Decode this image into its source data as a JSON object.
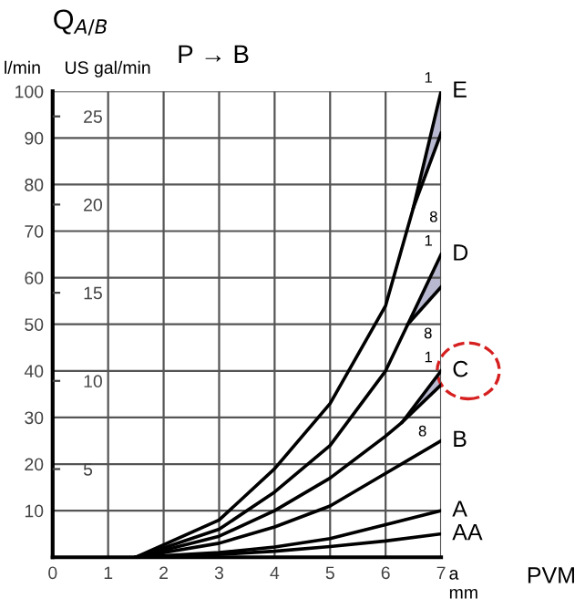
{
  "chart_data": {
    "type": "line",
    "xlabel": "a\nmm",
    "ylabel": "l/min",
    "y2label": "US gal/min",
    "xlim": [
      0,
      7
    ],
    "xticks": [
      0,
      1,
      2,
      3,
      4,
      5,
      6,
      7
    ],
    "ylim": [
      0,
      100
    ],
    "yticks": [
      10,
      20,
      30,
      40,
      50,
      60,
      70,
      80,
      90,
      100
    ],
    "y2lim": [
      0,
      26.42
    ],
    "y2ticks": [
      5,
      10,
      15,
      20,
      25
    ],
    "grid": true,
    "marker": "none",
    "line_style": "solid",
    "annotations": [
      "Q$_{A/B}$",
      "P → B",
      "PVM",
      {
        "text": "1",
        "x": 7,
        "y": 100
      },
      {
        "text": "8",
        "x": 6.5,
        "y": 75
      },
      {
        "text": "1",
        "x": 7,
        "y": 65
      },
      {
        "text": "8",
        "x": 6.4,
        "y": 50
      },
      {
        "text": "1",
        "x": 7,
        "y": 40
      },
      {
        "text": "8",
        "x": 6.3,
        "y": 29
      }
    ],
    "series": [
      {
        "name": "E",
        "color": "#000000",
        "x": [
          1.5,
          3,
          4,
          5,
          6,
          6.5,
          7
        ],
        "values": [
          0,
          8,
          19,
          33,
          54,
          75,
          100
        ],
        "lower": [
          null,
          null,
          null,
          null,
          null,
          75,
          91
        ],
        "upper": [
          null,
          null,
          null,
          null,
          null,
          75,
          100
        ]
      },
      {
        "color": "#000000",
        "x": [
          6.5,
          7
        ],
        "values": [
          75,
          91
        ]
      },
      {
        "name": "D",
        "color": "#000000",
        "x": [
          1.5,
          3,
          4,
          5,
          6,
          6.4,
          7
        ],
        "values": [
          0,
          6,
          14,
          24,
          40,
          50,
          65
        ],
        "lower": [
          null,
          null,
          null,
          null,
          null,
          50,
          58
        ],
        "upper": [
          null,
          null,
          null,
          null,
          null,
          50,
          65
        ]
      },
      {
        "color": "#000000",
        "x": [
          6.4,
          7
        ],
        "values": [
          50,
          58
        ]
      },
      {
        "name": "C",
        "color": "#000000",
        "x": [
          1.5,
          3,
          4,
          5,
          6,
          6.3,
          7
        ],
        "values": [
          0,
          4.5,
          10,
          17,
          26,
          29,
          40
        ],
        "lower": [
          null,
          null,
          null,
          null,
          null,
          29,
          37
        ],
        "upper": [
          null,
          null,
          null,
          null,
          null,
          29,
          40
        ]
      },
      {
        "color": "#000000",
        "x": [
          6.3,
          7
        ],
        "values": [
          29,
          37
        ]
      },
      {
        "name": "B",
        "color": "#000000",
        "x": [
          1.5,
          3,
          4,
          5,
          6,
          7
        ],
        "values": [
          0,
          3,
          6.5,
          11,
          18,
          25
        ]
      },
      {
        "name": "A",
        "color": "#000000",
        "x": [
          1.5,
          3,
          4,
          5,
          6,
          7
        ],
        "values": [
          0,
          1,
          2.2,
          4,
          7,
          10
        ]
      },
      {
        "name": "AA",
        "color": "#000000",
        "x": [
          1.5,
          3,
          4,
          5,
          6,
          7
        ],
        "values": [
          0,
          0.6,
          1.3,
          2.3,
          3.5,
          5
        ]
      }
    ]
  }
}
